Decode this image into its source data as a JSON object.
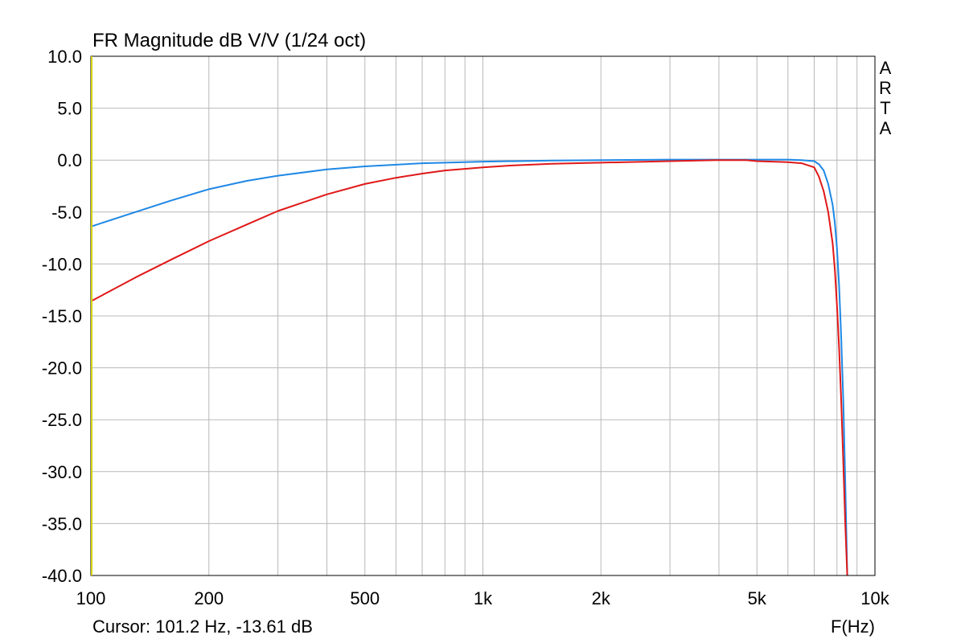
{
  "chart_data": {
    "type": "line",
    "title": "FR Magnitude dB V/V (1/24 oct)",
    "xlabel": "F(Hz)",
    "ylabel": "",
    "x_scale": "log",
    "xlim": [
      100,
      10000
    ],
    "ylim": [
      -40,
      10
    ],
    "grid": true,
    "y_ticks": [
      10,
      5,
      0,
      -5,
      -10,
      -15,
      -20,
      -25,
      -30,
      -35,
      -40
    ],
    "y_tick_labels": [
      "10.0",
      "5.0",
      "0.0",
      "-5.0",
      "-10.0",
      "-15.0",
      "-20.0",
      "-25.0",
      "-30.0",
      "-35.0",
      "-40.0"
    ],
    "x_tick_labels": [
      {
        "value": 100,
        "label": "100"
      },
      {
        "value": 200,
        "label": "200"
      },
      {
        "value": 500,
        "label": "500"
      },
      {
        "value": 1000,
        "label": "1k"
      },
      {
        "value": 2000,
        "label": "2k"
      },
      {
        "value": 5000,
        "label": "5k"
      },
      {
        "value": 10000,
        "label": "10k"
      }
    ],
    "brand_label": [
      "A",
      "R",
      "T",
      "A"
    ],
    "cursor_readout": "Cursor: 101.2 Hz, -13.61 dB",
    "series": [
      {
        "color": "#1e88e5",
        "x": [
          100,
          130,
          160,
          200,
          250,
          300,
          400,
          500,
          700,
          1000,
          1500,
          2000,
          3000,
          4000,
          5000,
          6000,
          6500,
          7000,
          7200,
          7400,
          7600,
          7800,
          7900,
          8000,
          8100,
          8200,
          8300,
          8400,
          8500
        ],
        "y": [
          -6.4,
          -5.0,
          -3.9,
          -2.8,
          -2.0,
          -1.5,
          -0.9,
          -0.6,
          -0.3,
          -0.15,
          -0.05,
          0.0,
          0.05,
          0.05,
          0.05,
          0.05,
          0.0,
          -0.1,
          -0.4,
          -1.0,
          -2.3,
          -4.3,
          -6.0,
          -8.5,
          -12.0,
          -17.0,
          -23.0,
          -31.0,
          -40.0
        ]
      },
      {
        "color": "#e01818",
        "x": [
          100,
          130,
          160,
          200,
          250,
          300,
          400,
          500,
          600,
          700,
          800,
          1000,
          1200,
          1500,
          2000,
          3000,
          4000,
          4700,
          5000,
          6000,
          6500,
          7000,
          7200,
          7400,
          7600,
          7800,
          7900,
          8000,
          8100,
          8200,
          8300,
          8400,
          8500
        ],
        "y": [
          -13.6,
          -11.3,
          -9.6,
          -7.8,
          -6.2,
          -4.9,
          -3.3,
          -2.3,
          -1.7,
          -1.3,
          -1.0,
          -0.7,
          -0.5,
          -0.35,
          -0.25,
          -0.1,
          0.0,
          0.0,
          -0.1,
          -0.2,
          -0.3,
          -0.7,
          -1.6,
          -3.0,
          -5.0,
          -8.0,
          -10.5,
          -14.0,
          -18.0,
          -23.0,
          -29.0,
          -35.0,
          -40.0
        ]
      }
    ]
  }
}
